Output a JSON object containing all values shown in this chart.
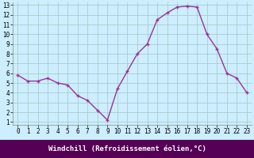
{
  "x": [
    0,
    1,
    2,
    3,
    4,
    5,
    6,
    7,
    8,
    9,
    10,
    11,
    12,
    13,
    14,
    15,
    16,
    17,
    18,
    19,
    20,
    21,
    22,
    23
  ],
  "y": [
    5.8,
    5.2,
    5.2,
    5.5,
    5.0,
    4.8,
    3.7,
    3.2,
    2.2,
    1.2,
    4.4,
    6.2,
    8.0,
    9.0,
    11.5,
    12.2,
    12.8,
    12.9,
    12.8,
    10.0,
    8.5,
    6.0,
    5.5,
    4.0
  ],
  "line_color": "#993399",
  "marker": "+",
  "marker_size": 3,
  "bg_color": "#cceeff",
  "grid_color": "#aacccc",
  "xlabel": "Windchill (Refroidissement éolien,°C)",
  "ylim": [
    1,
    13
  ],
  "xlim": [
    -0.5,
    23.5
  ],
  "yticks": [
    1,
    2,
    3,
    4,
    5,
    6,
    7,
    8,
    9,
    10,
    11,
    12,
    13
  ],
  "xticks": [
    0,
    1,
    2,
    3,
    4,
    5,
    6,
    7,
    8,
    9,
    10,
    11,
    12,
    13,
    14,
    15,
    16,
    17,
    18,
    19,
    20,
    21,
    22,
    23
  ],
  "axis_label_color": "#ffffff",
  "axis_bg_color": "#550055",
  "tick_label_fontsize": 5.5,
  "xlabel_fontsize": 6.5,
  "line_width": 1.0
}
